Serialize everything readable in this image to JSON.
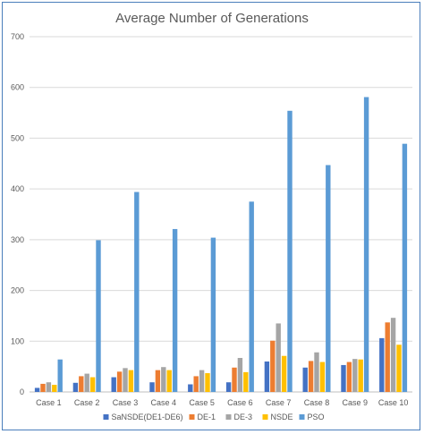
{
  "chart_data": {
    "type": "bar",
    "title": "Average Number of Generations",
    "xlabel": "",
    "ylabel": "",
    "ylim": [
      0,
      700
    ],
    "yticks": [
      0,
      100,
      200,
      300,
      400,
      500,
      600,
      700
    ],
    "grid": true,
    "legend_position": "bottom",
    "categories": [
      "Case 1",
      "Case 2",
      "Case 3",
      "Case 4",
      "Case 5",
      "Case 6",
      "Case 7",
      "Case 8",
      "Case 9",
      "Case 10"
    ],
    "series": [
      {
        "name": "SaNSDE(DE1-DE6)",
        "color": "#4472c4",
        "values": [
          8,
          18,
          29,
          19,
          15,
          19,
          60,
          48,
          53,
          106
        ]
      },
      {
        "name": "DE-1",
        "color": "#ed7d31",
        "values": [
          16,
          31,
          40,
          43,
          31,
          48,
          101,
          61,
          59,
          137
        ]
      },
      {
        "name": "DE-3",
        "color": "#a5a5a5",
        "values": [
          19,
          36,
          47,
          49,
          43,
          67,
          135,
          78,
          65,
          146
        ]
      },
      {
        "name": "NSDE",
        "color": "#ffc000",
        "values": [
          14,
          29,
          43,
          43,
          37,
          39,
          71,
          59,
          64,
          93
        ]
      },
      {
        "name": "PSO",
        "color": "#5b9bd5",
        "values": [
          64,
          299,
          394,
          321,
          304,
          375,
          554,
          447,
          581,
          489
        ]
      }
    ]
  }
}
